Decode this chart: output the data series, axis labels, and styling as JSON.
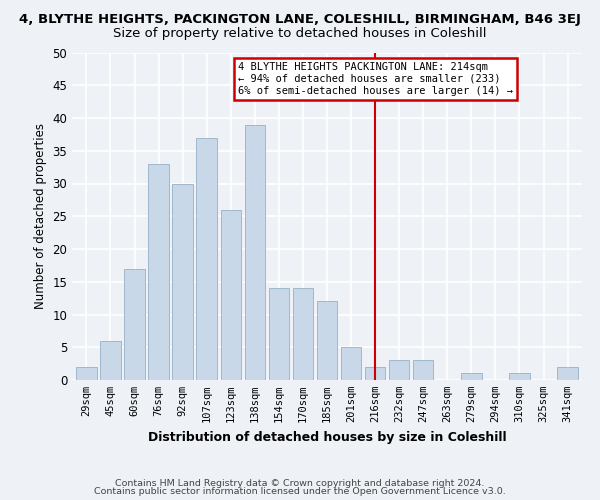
{
  "title": "4, BLYTHE HEIGHTS, PACKINGTON LANE, COLESHILL, BIRMINGHAM, B46 3EJ",
  "subtitle": "Size of property relative to detached houses in Coleshill",
  "xlabel": "Distribution of detached houses by size in Coleshill",
  "ylabel": "Number of detached properties",
  "bar_labels": [
    "29sqm",
    "45sqm",
    "60sqm",
    "76sqm",
    "92sqm",
    "107sqm",
    "123sqm",
    "138sqm",
    "154sqm",
    "170sqm",
    "185sqm",
    "201sqm",
    "216sqm",
    "232sqm",
    "247sqm",
    "263sqm",
    "279sqm",
    "294sqm",
    "310sqm",
    "325sqm",
    "341sqm"
  ],
  "bar_values": [
    2,
    6,
    17,
    33,
    30,
    37,
    26,
    39,
    14,
    14,
    12,
    5,
    2,
    3,
    3,
    0,
    1,
    0,
    1,
    0,
    2
  ],
  "bar_color": "#c8d8e8",
  "bar_edge_color": "#a0b8cc",
  "vline_x": 12,
  "vline_color": "#cc0000",
  "annotation_text": "4 BLYTHE HEIGHTS PACKINGTON LANE: 214sqm\n← 94% of detached houses are smaller (233)\n6% of semi-detached houses are larger (14) →",
  "annotation_box_color": "#ffffff",
  "annotation_box_edge": "#cc0000",
  "ylim": [
    0,
    50
  ],
  "yticks": [
    0,
    5,
    10,
    15,
    20,
    25,
    30,
    35,
    40,
    45,
    50
  ],
  "footer1": "Contains HM Land Registry data © Crown copyright and database right 2024.",
  "footer2": "Contains public sector information licensed under the Open Government Licence v3.0.",
  "background_color": "#eef2f7",
  "title_fontsize": 9.5,
  "subtitle_fontsize": 9.5
}
